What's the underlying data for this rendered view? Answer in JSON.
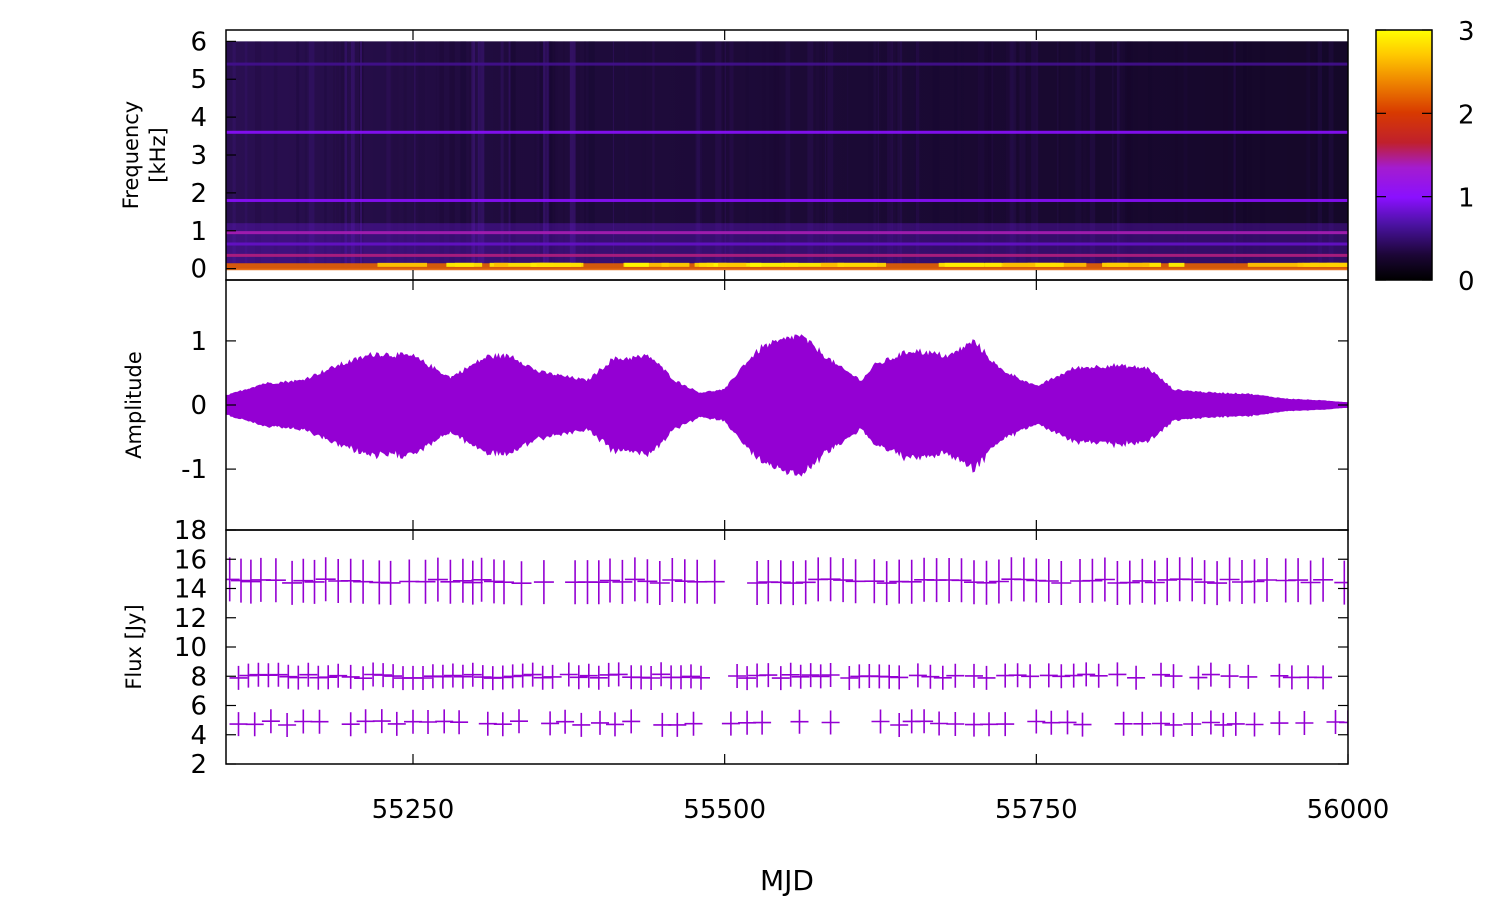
{
  "chart_data": [
    {
      "type": "heatmap",
      "panel": "spectrogram",
      "title": "",
      "xlabel": "",
      "ylabel_lines": [
        "Frequency",
        "[kHz]"
      ],
      "xlim": [
        55100,
        56000
      ],
      "ylim": [
        -0.3,
        6.3
      ],
      "yticks": [
        0,
        1,
        2,
        3,
        4,
        5,
        6
      ],
      "colorbar": {
        "range": [
          0,
          3
        ],
        "ticks": [
          0,
          1,
          2,
          3
        ],
        "colormap": [
          "#000000",
          "#2b0a52",
          "#8a10ff",
          "#c0202c",
          "#f08a00",
          "#ffff00"
        ]
      },
      "frequency_range_khz": [
        0,
        6
      ],
      "bands": [
        {
          "freq": 0.05,
          "intensity": 2.2
        },
        {
          "freq": 0.35,
          "intensity": 1.5
        },
        {
          "freq": 0.65,
          "intensity": 0.8
        },
        {
          "freq": 0.95,
          "intensity": 1.4
        },
        {
          "freq": 1.8,
          "intensity": 1.0
        },
        {
          "freq": 3.6,
          "intensity": 1.0
        },
        {
          "freq": 5.4,
          "intensity": 0.6
        }
      ]
    },
    {
      "type": "line",
      "panel": "waveform",
      "title": "",
      "xlabel": "",
      "ylabel": "Amplitude",
      "xlim": [
        55100,
        56000
      ],
      "ylim": [
        -1.95,
        1.95
      ],
      "yticks": [
        -1,
        0,
        1
      ],
      "color": "#9400d3",
      "envelope": {
        "x": [
          55100,
          55130,
          55160,
          55190,
          55220,
          55250,
          55280,
          55310,
          55330,
          55350,
          55390,
          55410,
          55440,
          55460,
          55480,
          55500,
          55515,
          55530,
          55560,
          55590,
          55610,
          55620,
          55650,
          55680,
          55700,
          55720,
          55750,
          55780,
          55810,
          55840,
          55860,
          55890,
          55920,
          55950,
          55980,
          56000
        ],
        "y": [
          0.15,
          0.35,
          0.4,
          0.65,
          0.85,
          0.8,
          0.45,
          0.8,
          0.8,
          0.55,
          0.4,
          0.75,
          0.8,
          0.4,
          0.2,
          0.25,
          0.65,
          0.95,
          1.15,
          0.65,
          0.4,
          0.65,
          0.9,
          0.8,
          1.05,
          0.6,
          0.3,
          0.6,
          0.65,
          0.6,
          0.25,
          0.2,
          0.18,
          0.1,
          0.07,
          0.04
        ]
      }
    },
    {
      "type": "scatter",
      "panel": "flux",
      "title": "",
      "xlabel": "MJD",
      "ylabel": "Flux [Jy]",
      "xlim": [
        55100,
        56000
      ],
      "ylim": [
        2,
        18
      ],
      "yticks": [
        2,
        4,
        6,
        8,
        10,
        12,
        14,
        16,
        18
      ],
      "xticks": [
        55250,
        55500,
        55750,
        56000
      ],
      "marker": "+",
      "color": "#9400d3",
      "groups": [
        {
          "y": 14.5,
          "x": [
            55103,
            55112,
            55120,
            55128,
            55140,
            55153,
            55162,
            55171,
            55180,
            55190,
            55200,
            55210,
            55223,
            55232,
            55247,
            55260,
            55270,
            55280,
            55290,
            55298,
            55305,
            55315,
            55323,
            55337,
            55355,
            55380,
            55390,
            55399,
            55408,
            55418,
            55428,
            55438,
            55448,
            55458,
            55468,
            55478,
            55492,
            55526,
            55535,
            55545,
            55555,
            55565,
            55575,
            55585,
            55595,
            55605,
            55620,
            55630,
            55640,
            55650,
            55660,
            55670,
            55680,
            55690,
            55700,
            55710,
            55720,
            55730,
            55740,
            55750,
            55760,
            55770,
            55785,
            55795,
            55805,
            55815,
            55825,
            55835,
            55845,
            55855,
            55865,
            55875,
            55885,
            55895,
            55905,
            55915,
            55925,
            55935,
            55950,
            55960,
            55970,
            55980,
            55997
          ]
        },
        {
          "y": 8.0,
          "x": [
            55110,
            55118,
            55126,
            55134,
            55142,
            55150,
            55158,
            55166,
            55174,
            55182,
            55190,
            55200,
            55210,
            55218,
            55226,
            55234,
            55242,
            55250,
            55258,
            55266,
            55274,
            55282,
            55290,
            55298,
            55306,
            55314,
            55322,
            55330,
            55338,
            55346,
            55354,
            55362,
            55375,
            55383,
            55391,
            55399,
            55407,
            55415,
            55425,
            55433,
            55441,
            55449,
            55457,
            55465,
            55473,
            55481,
            55510,
            55518,
            55526,
            55535,
            55545,
            55553,
            55561,
            55569,
            55577,
            55585,
            55600,
            55608,
            55616,
            55624,
            55632,
            55640,
            55655,
            55665,
            55675,
            55685,
            55700,
            55710,
            55725,
            55735,
            55745,
            55760,
            55770,
            55780,
            55790,
            55800,
            55815,
            55830,
            55850,
            55860,
            55880,
            55890,
            55905,
            55920,
            55945,
            55955,
            55968,
            55980
          ]
        },
        {
          "y": 4.8,
          "x": [
            55110,
            55123,
            55136,
            55149,
            55162,
            55175,
            55200,
            55212,
            55225,
            55237,
            55250,
            55262,
            55275,
            55287,
            55310,
            55322,
            55335,
            55360,
            55372,
            55385,
            55400,
            55412,
            55425,
            55450,
            55462,
            55475,
            55505,
            55518,
            55530,
            55560,
            55585,
            55625,
            55640,
            55650,
            55660,
            55672,
            55685,
            55700,
            55712,
            55725,
            55750,
            55762,
            55775,
            55787,
            55820,
            55835,
            55850,
            55860,
            55875,
            55890,
            55900,
            55910,
            55925,
            55945,
            55965,
            55990,
            56000
          ]
        }
      ]
    }
  ]
}
